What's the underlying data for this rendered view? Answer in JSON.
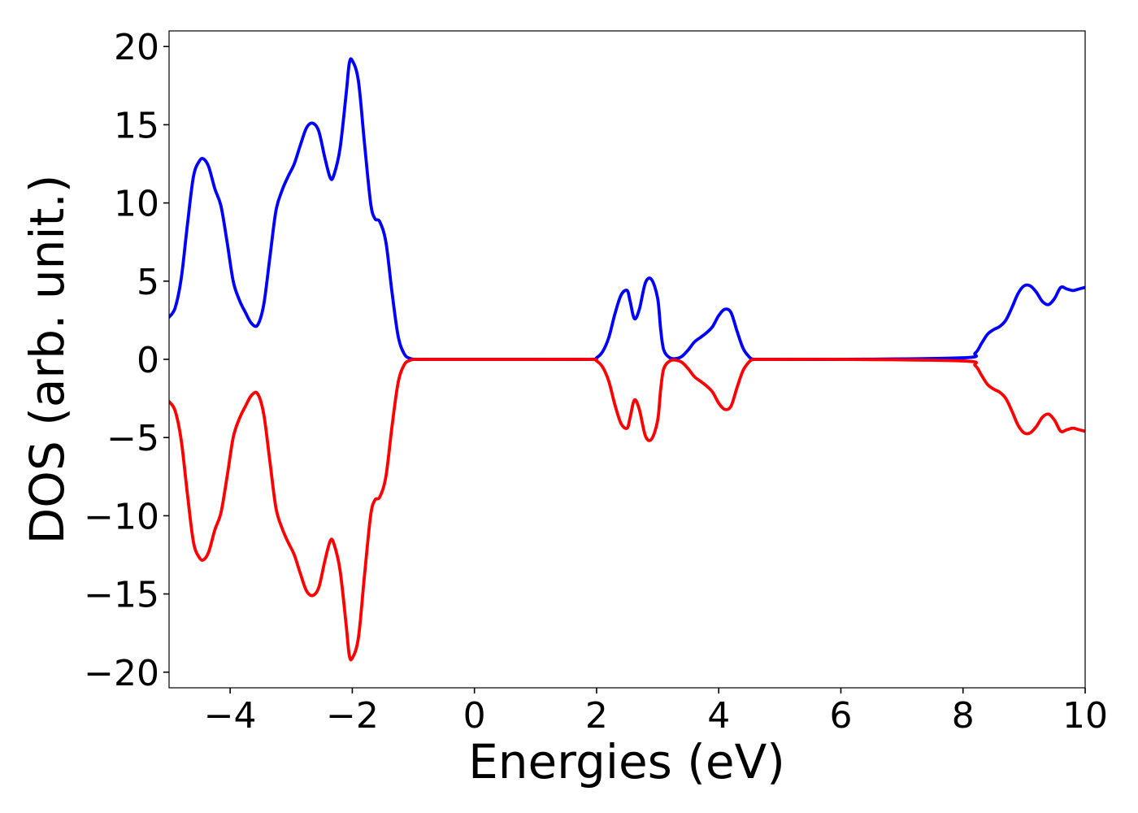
{
  "chart_data": {
    "type": "line",
    "title": "",
    "xlabel": "Energies (eV)",
    "ylabel": "DOS (arb. unit.)",
    "xlim": [
      -5,
      10
    ],
    "ylim": [
      -21,
      21
    ],
    "xticks": [
      -4,
      -2,
      0,
      2,
      4,
      6,
      8,
      10
    ],
    "xtick_labels": [
      "−4",
      "−2",
      "0",
      "2",
      "4",
      "6",
      "8",
      "10"
    ],
    "yticks": [
      -20,
      -15,
      -10,
      -5,
      0,
      5,
      10,
      15,
      20
    ],
    "ytick_labels": [
      "−20",
      "−15",
      "−10",
      "−5",
      "0",
      "5",
      "10",
      "15",
      "20"
    ],
    "grid": false,
    "legend": "none",
    "series": [
      {
        "color": "#0000ff",
        "x": [
          -5.0,
          -4.9,
          -4.8,
          -4.7,
          -4.6,
          -4.5,
          -4.43,
          -4.35,
          -4.25,
          -4.15,
          -4.05,
          -3.95,
          -3.85,
          -3.75,
          -3.65,
          -3.55,
          -3.45,
          -3.35,
          -3.25,
          -3.15,
          -3.05,
          -2.95,
          -2.85,
          -2.75,
          -2.65,
          -2.55,
          -2.45,
          -2.36,
          -2.3,
          -2.2,
          -2.1,
          -2.05,
          -2.0,
          -1.9,
          -1.8,
          -1.7,
          -1.63,
          -1.55,
          -1.45,
          -1.35,
          -1.25,
          -1.15,
          -1.05,
          -0.95,
          -0.85,
          -0.75,
          -0.65,
          -0.55,
          -0.45,
          -0.3,
          0.0,
          1.0,
          1.9,
          2.0,
          2.1,
          2.2,
          2.3,
          2.4,
          2.5,
          2.55,
          2.62,
          2.7,
          2.8,
          2.9,
          3.0,
          3.05,
          3.1,
          3.2,
          3.3,
          3.4,
          3.5,
          3.6,
          3.7,
          3.8,
          3.9,
          4.0,
          4.1,
          4.2,
          4.3,
          4.4,
          4.5,
          4.55,
          4.6,
          4.7,
          4.8,
          4.9,
          5.0,
          6.0,
          8.0,
          8.2,
          8.3,
          8.4,
          8.5,
          8.6,
          8.7,
          8.8,
          8.9,
          9.0,
          9.1,
          9.2,
          9.3,
          9.4,
          9.5,
          9.6,
          9.7,
          9.8,
          9.9,
          10.0
        ],
        "y": [
          2.7,
          3.3,
          5.2,
          8.6,
          11.7,
          12.7,
          12.8,
          12.3,
          10.9,
          9.8,
          7.5,
          5.0,
          3.8,
          3.0,
          2.3,
          2.2,
          3.5,
          6.5,
          9.5,
          10.8,
          11.7,
          12.5,
          13.7,
          14.8,
          15.1,
          14.6,
          12.9,
          11.6,
          11.8,
          13.5,
          17.0,
          18.9,
          19.1,
          17.8,
          13.8,
          10.0,
          9.0,
          8.8,
          7.5,
          4.3,
          1.5,
          0.35,
          0.05,
          0.0,
          0.0,
          0.0,
          0.0,
          0.0,
          0.0,
          0.0,
          0.0,
          0.0,
          0.0,
          0.1,
          0.5,
          1.4,
          2.9,
          4.1,
          4.4,
          3.7,
          2.6,
          3.2,
          4.9,
          5.1,
          3.9,
          1.9,
          0.6,
          0.1,
          0.05,
          0.2,
          0.6,
          1.1,
          1.4,
          1.7,
          2.1,
          2.8,
          3.2,
          3.0,
          1.8,
          0.7,
          0.15,
          0.02,
          0.0,
          0.0,
          0.0,
          0.0,
          0.0,
          0.0,
          0.1,
          0.4,
          1.0,
          1.6,
          1.9,
          2.1,
          2.5,
          3.3,
          4.2,
          4.7,
          4.7,
          4.3,
          3.7,
          3.5,
          3.9,
          4.6,
          4.5,
          4.4,
          4.5,
          4.6
        ]
      },
      {
        "color": "#ff0000",
        "x": [
          -5.0,
          -4.9,
          -4.8,
          -4.7,
          -4.6,
          -4.5,
          -4.43,
          -4.35,
          -4.25,
          -4.15,
          -4.05,
          -3.95,
          -3.85,
          -3.75,
          -3.65,
          -3.55,
          -3.45,
          -3.35,
          -3.25,
          -3.15,
          -3.05,
          -2.95,
          -2.85,
          -2.75,
          -2.65,
          -2.55,
          -2.45,
          -2.36,
          -2.3,
          -2.2,
          -2.1,
          -2.05,
          -2.0,
          -1.9,
          -1.8,
          -1.7,
          -1.63,
          -1.55,
          -1.45,
          -1.35,
          -1.25,
          -1.15,
          -1.05,
          -0.95,
          -0.85,
          -0.75,
          -0.65,
          -0.55,
          -0.45,
          -0.3,
          0.0,
          1.0,
          1.9,
          2.0,
          2.1,
          2.2,
          2.3,
          2.4,
          2.5,
          2.55,
          2.62,
          2.7,
          2.8,
          2.9,
          3.0,
          3.05,
          3.1,
          3.2,
          3.3,
          3.4,
          3.5,
          3.6,
          3.7,
          3.8,
          3.9,
          4.0,
          4.1,
          4.2,
          4.3,
          4.4,
          4.5,
          4.55,
          4.6,
          4.7,
          4.8,
          4.9,
          5.0,
          6.0,
          8.0,
          8.2,
          8.3,
          8.4,
          8.5,
          8.6,
          8.7,
          8.8,
          8.9,
          9.0,
          9.1,
          9.2,
          9.3,
          9.4,
          9.5,
          9.6,
          9.7,
          9.8,
          9.9,
          10.0
        ],
        "y": [
          -2.7,
          -3.3,
          -5.2,
          -8.6,
          -11.7,
          -12.7,
          -12.8,
          -12.3,
          -10.9,
          -9.8,
          -7.5,
          -5.0,
          -3.8,
          -3.0,
          -2.3,
          -2.2,
          -3.5,
          -6.5,
          -9.5,
          -10.8,
          -11.7,
          -12.5,
          -13.7,
          -14.8,
          -15.1,
          -14.6,
          -12.9,
          -11.6,
          -11.8,
          -13.5,
          -17.0,
          -18.9,
          -19.1,
          -17.8,
          -13.8,
          -10.0,
          -9.0,
          -8.8,
          -7.5,
          -4.3,
          -1.5,
          -0.35,
          -0.05,
          0.0,
          0.0,
          0.0,
          0.0,
          0.0,
          0.0,
          0.0,
          0.0,
          0.0,
          0.0,
          -0.1,
          -0.5,
          -1.4,
          -2.9,
          -4.1,
          -4.4,
          -3.7,
          -2.6,
          -3.2,
          -4.9,
          -5.1,
          -3.9,
          -1.9,
          -0.6,
          -0.1,
          -0.05,
          -0.2,
          -0.6,
          -1.1,
          -1.4,
          -1.7,
          -2.1,
          -2.8,
          -3.2,
          -3.0,
          -1.8,
          -0.7,
          -0.15,
          -0.02,
          0.0,
          0.0,
          0.0,
          0.0,
          0.0,
          0.0,
          -0.1,
          -0.4,
          -1.0,
          -1.6,
          -1.9,
          -2.1,
          -2.5,
          -3.3,
          -4.2,
          -4.7,
          -4.7,
          -4.3,
          -3.7,
          -3.5,
          -3.9,
          -4.6,
          -4.5,
          -4.4,
          -4.5,
          -4.6
        ]
      }
    ]
  }
}
